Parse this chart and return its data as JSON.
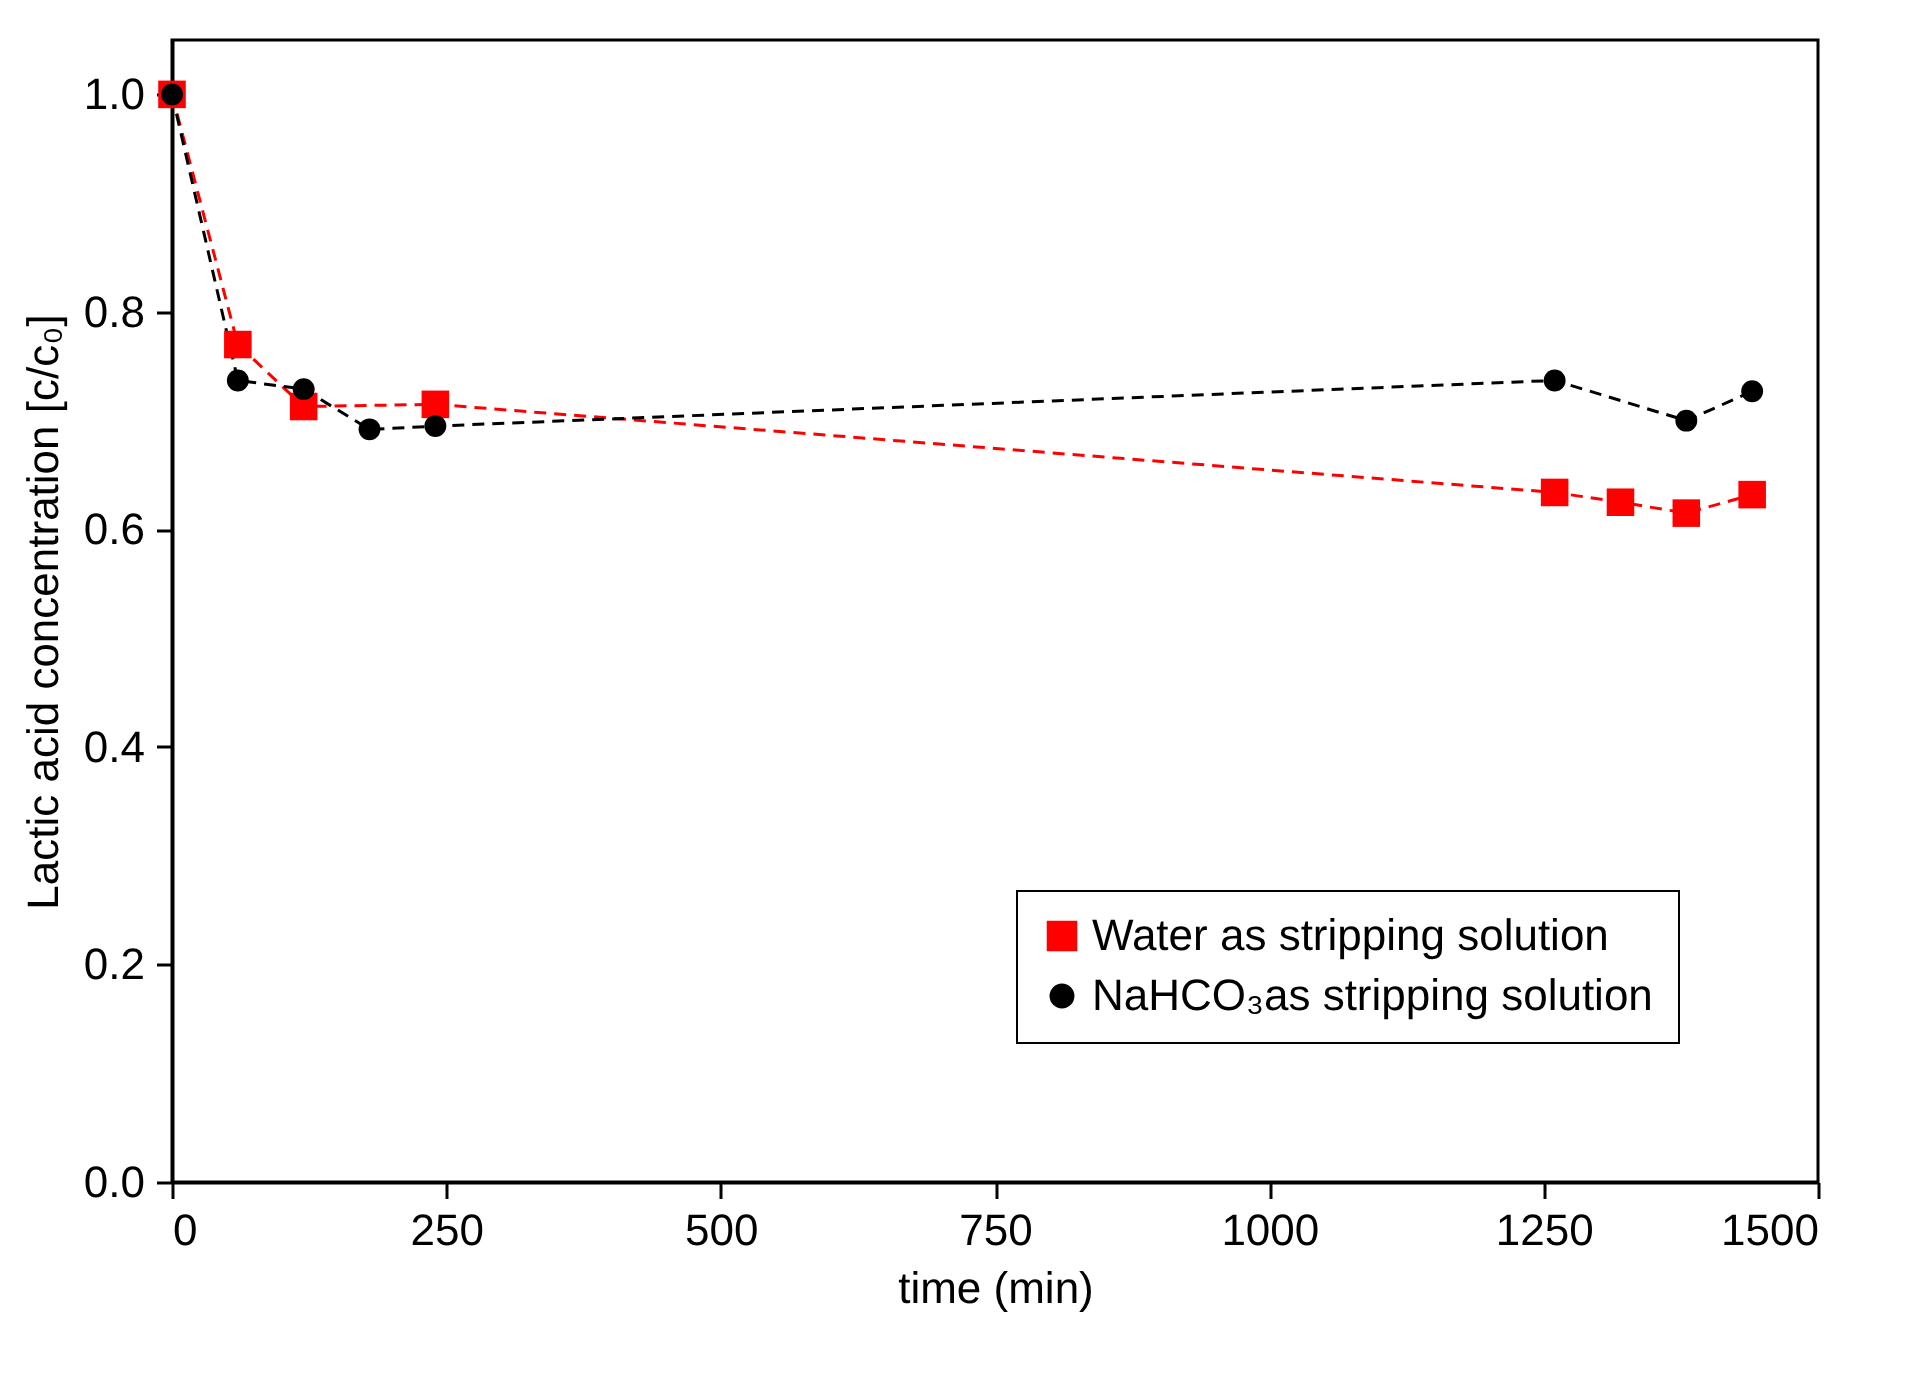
{
  "chart_data": {
    "type": "line",
    "xlabel": "time (min)",
    "ylabel": "Lactic acid concentration [c/c₀]",
    "xlim": [
      0,
      1500
    ],
    "xticks": [
      0,
      250,
      500,
      750,
      1000,
      1250,
      1500
    ],
    "ylim": [
      0,
      1.05
    ],
    "yticks": [
      {
        "value": 0,
        "label": "0.0"
      },
      {
        "value": 0.2,
        "label": "0.2"
      },
      {
        "value": 0.4,
        "label": "0.4"
      },
      {
        "value": 0.6,
        "label": "0.6"
      },
      {
        "value": 0.8,
        "label": "0.8"
      },
      {
        "value": 1,
        "label": "1.0"
      }
    ],
    "grid": false,
    "legend": "bottom right",
    "line_style": "dashed",
    "series": [
      {
        "name": "Water as stripping solution",
        "color": "#ff0000",
        "marker": "square",
        "x": [
          0,
          60,
          120,
          240,
          1260,
          1320,
          1380,
          1440
        ],
        "values": [
          1.0,
          0.77,
          0.713,
          0.715,
          0.634,
          0.625,
          0.615,
          0.632
        ]
      },
      {
        "name": "NaHCO₃as stripping solution",
        "color": "#000000",
        "marker": "circle",
        "x": [
          0,
          60,
          120,
          180,
          240,
          1260,
          1380,
          1440
        ],
        "values": [
          1.0,
          0.737,
          0.729,
          0.692,
          0.695,
          0.737,
          0.7,
          0.727
        ]
      }
    ]
  }
}
